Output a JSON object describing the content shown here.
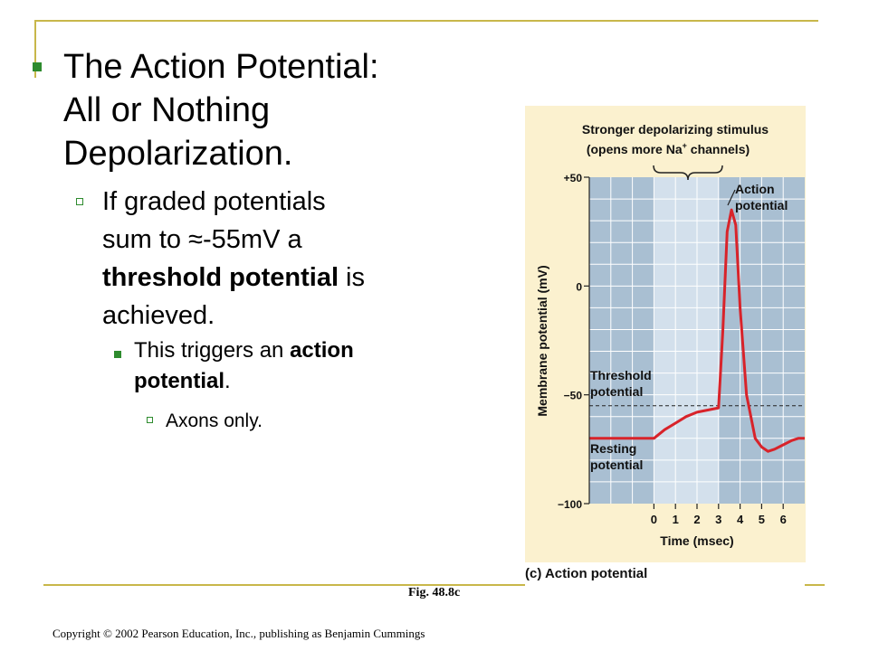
{
  "title": {
    "line1": "The Action Potential:",
    "line2": "All or Nothing",
    "line3": "Depolarization."
  },
  "bullet1": {
    "line1": "If graded potentials",
    "line2_pre": "sum to ",
    "line2_sym": "≈",
    "line2_post": "-55mV a",
    "line3_bold": "threshold potential",
    "line3_post": " is",
    "line4": "achieved."
  },
  "bullet2": {
    "pre": "This triggers an ",
    "bold1": "action",
    "bold2": "potential",
    "post": "."
  },
  "bullet3": {
    "text": "Axons only."
  },
  "figure": {
    "header_line1": "Stronger depolarizing stimulus",
    "header_line2_pre": "(opens more Na",
    "header_line2_sup": "+",
    "header_line2_post": " channels)",
    "action_label_1": "Action",
    "action_label_2": "potential",
    "threshold_label_1": "Threshold",
    "threshold_label_2": "potential",
    "resting_label_1": "Resting",
    "resting_label_2": "potential",
    "caption": "(c) Action potential",
    "colors": {
      "curve": "#d8232a",
      "shade_dark": "#a9bfd2",
      "shade_light": "#d3e0ec",
      "background": "#fbf1cf"
    }
  },
  "chart_data": {
    "type": "line",
    "xlabel": "Time (msec)",
    "ylabel": "Membrane potential (mV)",
    "xlim": [
      -3,
      7
    ],
    "ylim": [
      -100,
      50
    ],
    "x_ticks": [
      "0",
      "1",
      "2",
      "3",
      "4",
      "5",
      "6"
    ],
    "y_ticks": [
      "+50",
      "0",
      "−50",
      "−100"
    ],
    "threshold": -55,
    "series": [
      {
        "x": [
          -3.0,
          0.0,
          0.5,
          1.0,
          1.5,
          2.0,
          2.5,
          3.0,
          3.2,
          3.4,
          3.6,
          3.8,
          4.0,
          4.3,
          4.7,
          5.0,
          5.3,
          5.6,
          6.0,
          6.4,
          6.7,
          7.0
        ],
        "y": [
          -70,
          -70,
          -66,
          -63,
          -60,
          -58,
          -57,
          -56,
          -20,
          25,
          35,
          28,
          -10,
          -50,
          -70,
          -74,
          -76,
          -75,
          -73,
          -71,
          -70,
          -70
        ]
      }
    ]
  },
  "fig_ref": "Fig. 48.8c",
  "copyright": "Copyright © 2002 Pearson Education, Inc., publishing as Benjamin Cummings"
}
